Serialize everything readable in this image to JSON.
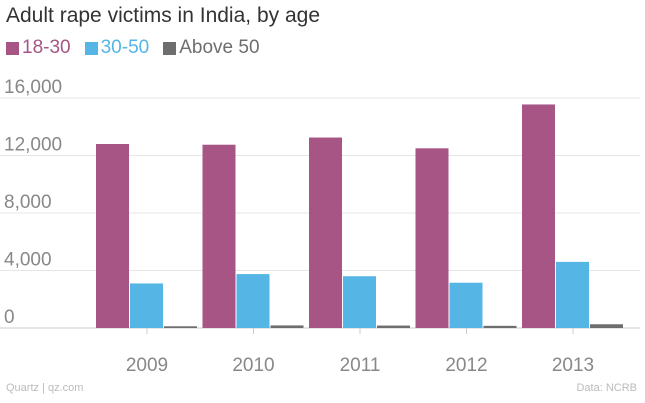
{
  "chart_data": {
    "type": "bar",
    "title": "Adult rape victims in India, by age",
    "categories": [
      "2009",
      "2010",
      "2011",
      "2012",
      "2013"
    ],
    "series": [
      {
        "name": "18-30",
        "color": "#a65585",
        "values": [
          12800,
          12750,
          13250,
          12500,
          15550
        ]
      },
      {
        "name": "30-50",
        "color": "#55b5e5",
        "values": [
          3100,
          3750,
          3600,
          3150,
          4600
        ]
      },
      {
        "name": "Above 50",
        "color": "#6e6e6e",
        "values": [
          120,
          180,
          170,
          150,
          260
        ]
      }
    ],
    "y_ticks": [
      "0",
      "4,000",
      "8,000",
      "12,000",
      "16,000"
    ],
    "ylim": [
      0,
      16000
    ],
    "grid": true,
    "legend_position": "top-left"
  },
  "footer": {
    "source_left": "Quartz | qz.com",
    "source_right": "Data: NCRB"
  }
}
